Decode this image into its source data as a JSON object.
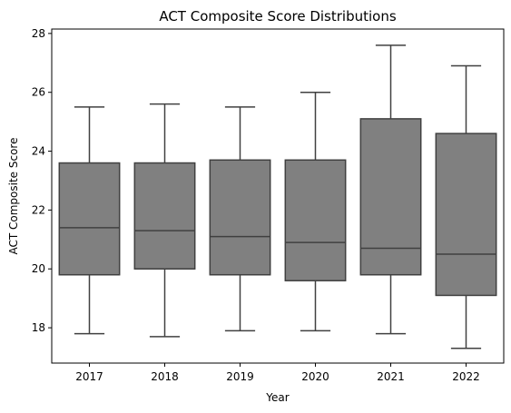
{
  "chart_data": {
    "type": "box",
    "title": "ACT Composite Score Distributions",
    "xlabel": "Year",
    "ylabel": "ACT Composite Score",
    "categories": [
      "2017",
      "2018",
      "2019",
      "2020",
      "2021",
      "2022"
    ],
    "boxes": [
      {
        "category": "2017",
        "whisker_low": 17.8,
        "q1": 19.8,
        "median": 21.4,
        "q3": 23.6,
        "whisker_high": 25.5
      },
      {
        "category": "2018",
        "whisker_low": 17.7,
        "q1": 20.0,
        "median": 21.3,
        "q3": 23.6,
        "whisker_high": 25.6
      },
      {
        "category": "2019",
        "whisker_low": 17.9,
        "q1": 19.8,
        "median": 21.1,
        "q3": 23.7,
        "whisker_high": 25.5
      },
      {
        "category": "2020",
        "whisker_low": 17.9,
        "q1": 19.6,
        "median": 20.9,
        "q3": 23.7,
        "whisker_high": 26.0
      },
      {
        "category": "2021",
        "whisker_low": 17.8,
        "q1": 19.8,
        "median": 20.7,
        "q3": 25.1,
        "whisker_high": 27.6
      },
      {
        "category": "2022",
        "whisker_low": 17.3,
        "q1": 19.1,
        "median": 20.5,
        "q3": 24.6,
        "whisker_high": 26.9
      }
    ],
    "yticks": [
      "18",
      "20",
      "22",
      "24",
      "26",
      "28"
    ],
    "ylim": [
      16.8,
      28.15
    ],
    "grid": false,
    "colors": {
      "box_fill": "#808080",
      "box_edge": "#404040",
      "axis": "#000000"
    }
  }
}
